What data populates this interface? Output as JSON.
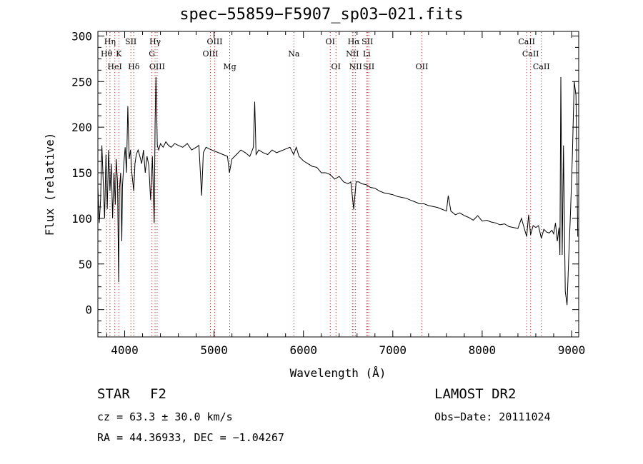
{
  "chart_data": {
    "type": "line",
    "title": "spec−55859−F5907_sp03−021.fits",
    "xlabel": "Wavelength (Å)",
    "ylabel": "Flux (relative)",
    "xlim": [
      3700,
      9080
    ],
    "ylim": [
      -30,
      305
    ],
    "xticks": [
      4000,
      5000,
      6000,
      7000,
      8000,
      9000
    ],
    "yticks": [
      0,
      50,
      100,
      150,
      200,
      250,
      300
    ],
    "grid": false,
    "series": [
      {
        "color": "#000000",
        "x": [
          3700,
          3715,
          3730,
          3745,
          3760,
          3775,
          3790,
          3805,
          3820,
          3835,
          3850,
          3865,
          3880,
          3895,
          3905,
          3920,
          3933,
          3940,
          3955,
          3968,
          3975,
          3990,
          4005,
          4020,
          4035,
          4050,
          4065,
          4080,
          4101,
          4115,
          4130,
          4150,
          4170,
          4190,
          4210,
          4230,
          4250,
          4270,
          4290,
          4310,
          4330,
          4340,
          4350,
          4365,
          4380,
          4400,
          4430,
          4460,
          4490,
          4520,
          4560,
          4600,
          4650,
          4700,
          4750,
          4800,
          4830,
          4861,
          4880,
          4910,
          4950,
          5000,
          5050,
          5100,
          5150,
          5172,
          5200,
          5250,
          5300,
          5350,
          5400,
          5440,
          5455,
          5470,
          5500,
          5550,
          5600,
          5650,
          5700,
          5750,
          5800,
          5850,
          5890,
          5920,
          5950,
          6000,
          6050,
          6100,
          6150,
          6200,
          6250,
          6300,
          6350,
          6400,
          6450,
          6500,
          6530,
          6563,
          6590,
          6620,
          6650,
          6700,
          6750,
          6800,
          6850,
          6900,
          6950,
          7000,
          7050,
          7100,
          7150,
          7200,
          7250,
          7300,
          7350,
          7400,
          7450,
          7500,
          7550,
          7600,
          7620,
          7650,
          7700,
          7750,
          7800,
          7850,
          7900,
          7950,
          8000,
          8050,
          8100,
          8150,
          8200,
          8250,
          8300,
          8350,
          8400,
          8440,
          8460,
          8498,
          8520,
          8542,
          8570,
          8600,
          8630,
          8662,
          8690,
          8720,
          8750,
          8780,
          8800,
          8820,
          8840,
          8860,
          8870,
          8880,
          8895,
          8910,
          8930,
          8950,
          8970,
          8990,
          9010,
          9030,
          9050,
          9070
        ],
        "y": [
          135,
          95,
          120,
          180,
          140,
          100,
          170,
          110,
          175,
          130,
          160,
          100,
          150,
          115,
          165,
          140,
          30,
          130,
          150,
          75,
          135,
          160,
          178,
          150,
          223,
          165,
          175,
          150,
          130,
          160,
          170,
          175,
          168,
          160,
          175,
          150,
          168,
          158,
          120,
          168,
          95,
          205,
          255,
          180,
          175,
          182,
          178,
          184,
          180,
          178,
          182,
          180,
          178,
          182,
          175,
          178,
          180,
          125,
          172,
          178,
          176,
          174,
          172,
          170,
          168,
          150,
          165,
          170,
          175,
          172,
          168,
          178,
          228,
          170,
          175,
          172,
          170,
          175,
          172,
          174,
          176,
          178,
          170,
          178,
          168,
          163,
          160,
          157,
          156,
          150,
          150,
          148,
          143,
          146,
          140,
          138,
          140,
          110,
          140,
          140,
          138,
          137,
          134,
          133,
          130,
          128,
          127,
          126,
          124,
          123,
          122,
          120,
          118,
          116,
          116,
          114,
          113,
          112,
          110,
          108,
          125,
          108,
          104,
          106,
          103,
          101,
          98,
          103,
          97,
          98,
          96,
          95,
          93,
          94,
          91,
          90,
          89,
          100,
          93,
          80,
          104,
          82,
          92,
          90,
          92,
          78,
          88,
          85,
          84,
          87,
          83,
          95,
          75,
          90,
          60,
          255,
          60,
          180,
          20,
          5,
          60,
          110,
          170,
          250,
          235,
          80
        ]
      }
    ],
    "spectral_lines": [
      {
        "label": "Hη",
        "wavelength": 3835,
        "row": 0
      },
      {
        "label": "Hθ",
        "wavelength": 3797,
        "row": 1
      },
      {
        "label": "HeI",
        "wavelength": 3889,
        "row": 2
      },
      {
        "label": "K",
        "wavelength": 3934,
        "row": 1
      },
      {
        "label": "SII",
        "wavelength": 4069,
        "row": 0
      },
      {
        "label": "Hδ",
        "wavelength": 4102,
        "row": 2
      },
      {
        "label": "Hγ",
        "wavelength": 4340,
        "row": 0
      },
      {
        "label": "G",
        "wavelength": 4305,
        "row": 1
      },
      {
        "label": "OIII",
        "wavelength": 4363,
        "row": 2
      },
      {
        "label": "OIII",
        "wavelength": 5007,
        "row": 0
      },
      {
        "label": "OIII",
        "wavelength": 4959,
        "row": 1
      },
      {
        "label": "Mg",
        "wavelength": 5175,
        "row": 2
      },
      {
        "label": "Na",
        "wavelength": 5893,
        "row": 1
      },
      {
        "label": "OI",
        "wavelength": 6300,
        "row": 0
      },
      {
        "label": "OI",
        "wavelength": 6364,
        "row": 2
      },
      {
        "label": "Hα",
        "wavelength": 6563,
        "row": 0
      },
      {
        "label": "SII",
        "wavelength": 6716,
        "row": 0
      },
      {
        "label": "NII",
        "wavelength": 6548,
        "row": 1
      },
      {
        "label": "Li",
        "wavelength": 6708,
        "row": 1
      },
      {
        "label": "NII",
        "wavelength": 6583,
        "row": 2
      },
      {
        "label": "SII",
        "wavelength": 6731,
        "row": 2
      },
      {
        "label": "OII",
        "wavelength": 7325,
        "row": 2
      },
      {
        "label": "CaII",
        "wavelength": 8498,
        "row": 0
      },
      {
        "label": "CaII",
        "wavelength": 8542,
        "row": 1
      },
      {
        "label": "CaII",
        "wavelength": 8662,
        "row": 2
      }
    ]
  },
  "info": {
    "obj_type": "STAR",
    "sub_class": "F2",
    "survey": "LAMOST DR2",
    "cz": "cz = 63.3 ± 30.0 km/s",
    "obs_date": "Obs−Date: 20111024",
    "coords": "RA =  44.36933, DEC =  −1.04267"
  }
}
